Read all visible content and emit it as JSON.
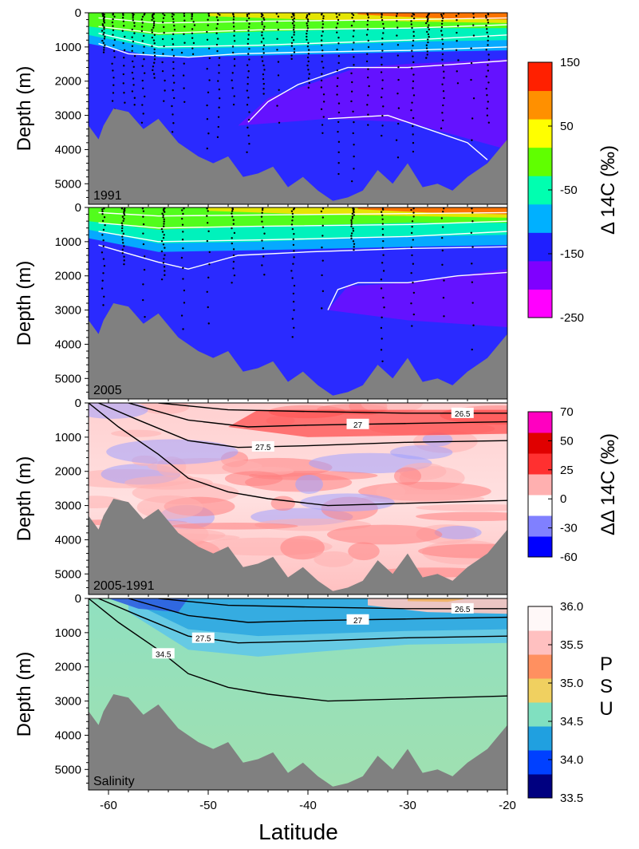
{
  "chart_data": {
    "type": "heatmap",
    "xlabel": "Latitude",
    "xlim": [
      -62,
      -20
    ],
    "xticks": [
      -60,
      -50,
      -40,
      -30,
      -20
    ],
    "ylim": [
      5600,
      0
    ],
    "yticks": [
      0,
      1000,
      2000,
      3000,
      4000,
      5000
    ],
    "bathymetry": {
      "lat": [
        -62,
        -61,
        -60.5,
        -59.5,
        -58,
        -56.5,
        -55,
        -53,
        -51,
        -49.5,
        -48,
        -46.5,
        -45,
        -43.5,
        -42,
        -40.5,
        -39,
        -37.5,
        -36,
        -34.5,
        -33,
        -31.5,
        -30,
        -28.5,
        -27,
        -25.5,
        -24,
        -22,
        -20
      ],
      "depth": [
        3300,
        3700,
        3300,
        2800,
        2900,
        3400,
        3100,
        3800,
        4200,
        4400,
        4200,
        4800,
        4700,
        4500,
        5100,
        4800,
        5200,
        5500,
        5400,
        5200,
        4600,
        5000,
        4400,
        5100,
        5000,
        5200,
        4800,
        4400,
        3700
      ]
    },
    "panels": [
      {
        "label": "1991",
        "ylabel": "Depth (m)",
        "field": "Δ14C",
        "has_stations": true,
        "contours": [
          {
            "color": "white",
            "depth": [
              [
                -61,
                150
              ],
              [
                -55,
                300
              ],
              [
                -45,
                250
              ],
              [
                -30,
                200
              ],
              [
                -20,
                150
              ]
            ]
          },
          {
            "color": "white",
            "depth": [
              [
                -61,
                400
              ],
              [
                -55,
                600
              ],
              [
                -45,
                500
              ],
              [
                -30,
                450
              ],
              [
                -20,
                350
              ]
            ]
          },
          {
            "color": "white",
            "depth": [
              [
                -61,
                600
              ],
              [
                -55,
                1000
              ],
              [
                -45,
                950
              ],
              [
                -30,
                800
              ],
              [
                -20,
                650
              ]
            ]
          },
          {
            "color": "white",
            "depth": [
              [
                -61,
                900
              ],
              [
                -58,
                1200
              ],
              [
                -52,
                1300
              ],
              [
                -47,
                1200
              ],
              [
                -40,
                1150
              ],
              [
                -30,
                1100
              ],
              [
                -20,
                1000
              ]
            ]
          },
          {
            "color": "white",
            "depth": [
              [
                -46,
                3200
              ],
              [
                -44,
                2600
              ],
              [
                -41,
                2100
              ],
              [
                -36,
                1600
              ],
              [
                -30,
                1600
              ],
              [
                -25,
                1500
              ],
              [
                -20,
                1400
              ]
            ]
          },
          {
            "color": "white",
            "depth": [
              [
                -38,
                3100
              ],
              [
                -32,
                3000
              ],
              [
                -28,
                3400
              ],
              [
                -24,
                3800
              ],
              [
                -22,
                4300
              ]
            ]
          }
        ]
      },
      {
        "label": "2005",
        "ylabel": "Depth (m)",
        "field": "Δ14C",
        "has_stations": true,
        "contours": [
          {
            "color": "white",
            "depth": [
              [
                -61,
                150
              ],
              [
                -55,
                250
              ],
              [
                -45,
                220
              ],
              [
                -30,
                180
              ],
              [
                -20,
                150
              ]
            ]
          },
          {
            "color": "white",
            "depth": [
              [
                -61,
                450
              ],
              [
                -55,
                600
              ],
              [
                -45,
                550
              ],
              [
                -30,
                500
              ],
              [
                -20,
                400
              ]
            ]
          },
          {
            "color": "white",
            "depth": [
              [
                -61,
                700
              ],
              [
                -55,
                1000
              ],
              [
                -45,
                950
              ],
              [
                -30,
                850
              ],
              [
                -20,
                700
              ]
            ]
          },
          {
            "color": "white",
            "depth": [
              [
                -61,
                1100
              ],
              [
                -55,
                1600
              ],
              [
                -52,
                1800
              ],
              [
                -47,
                1400
              ],
              [
                -40,
                1300
              ],
              [
                -30,
                1200
              ],
              [
                -20,
                1150
              ]
            ]
          },
          {
            "color": "white",
            "depth": [
              [
                -38,
                3000
              ],
              [
                -37,
                2400
              ],
              [
                -35,
                2200
              ],
              [
                -30,
                2200
              ],
              [
                -25,
                2000
              ],
              [
                -20,
                1900
              ]
            ]
          }
        ]
      },
      {
        "label": "2005-1991",
        "ylabel": "Depth (m)",
        "field": "ΔΔ14C",
        "has_stations": false,
        "contours": [
          {
            "color": "black",
            "label": "26.5",
            "label_lat": -24.5,
            "depth": [
              [
                -55,
                0
              ],
              [
                -48,
                200
              ],
              [
                -40,
                250
              ],
              [
                -30,
                300
              ],
              [
                -20,
                300
              ]
            ]
          },
          {
            "color": "black",
            "label": "27",
            "label_lat": -35,
            "depth": [
              [
                -58,
                0
              ],
              [
                -52,
                500
              ],
              [
                -46,
                700
              ],
              [
                -40,
                650
              ],
              [
                -30,
                600
              ],
              [
                -20,
                550
              ]
            ]
          },
          {
            "color": "black",
            "label": "27.5",
            "label_lat": -44.5,
            "depth": [
              [
                -61,
                0
              ],
              [
                -57,
                500
              ],
              [
                -52,
                1100
              ],
              [
                -47,
                1300
              ],
              [
                -40,
                1250
              ],
              [
                -30,
                1150
              ],
              [
                -20,
                1100
              ]
            ]
          },
          {
            "color": "black",
            "depth": [
              [
                -62,
                0
              ],
              [
                -59,
                700
              ],
              [
                -55,
                1500
              ],
              [
                -52,
                2200
              ],
              [
                -48,
                2600
              ],
              [
                -44,
                2800
              ],
              [
                -38,
                3000
              ],
              [
                -32,
                2950
              ],
              [
                -26,
                2900
              ],
              [
                -20,
                2850
              ]
            ]
          }
        ]
      },
      {
        "label": "Salinity",
        "ylabel": "Depth (m)",
        "field": "PSU",
        "has_stations": false,
        "contours": [
          {
            "color": "black",
            "label": "26.5",
            "label_lat": -24.5,
            "depth": [
              [
                -55,
                0
              ],
              [
                -48,
                200
              ],
              [
                -40,
                250
              ],
              [
                -30,
                300
              ],
              [
                -20,
                300
              ]
            ]
          },
          {
            "color": "black",
            "label": "27",
            "label_lat": -35,
            "depth": [
              [
                -58,
                0
              ],
              [
                -52,
                500
              ],
              [
                -46,
                700
              ],
              [
                -40,
                650
              ],
              [
                -30,
                600
              ],
              [
                -20,
                550
              ]
            ]
          },
          {
            "color": "black",
            "label": "27.5",
            "label_lat": -50.5,
            "depth": [
              [
                -61,
                0
              ],
              [
                -57,
                500
              ],
              [
                -52,
                1100
              ],
              [
                -47,
                1300
              ],
              [
                -40,
                1250
              ],
              [
                -30,
                1150
              ],
              [
                -20,
                1100
              ]
            ]
          },
          {
            "color": "black",
            "label": "34.5",
            "label_lat": -54.5,
            "depth": [
              [
                -62,
                0
              ],
              [
                -59,
                700
              ],
              [
                -55,
                1500
              ],
              [
                -52,
                2200
              ],
              [
                -48,
                2600
              ],
              [
                -44,
                2800
              ],
              [
                -38,
                3000
              ],
              [
                -32,
                2950
              ],
              [
                -26,
                2900
              ],
              [
                -20,
                2850
              ]
            ]
          }
        ]
      }
    ],
    "colorbars": [
      {
        "label": "Δ 14C (‰)",
        "ticks": [
          "150",
          "50",
          "-50",
          "-150",
          "-250"
        ],
        "range": [
          -250,
          150
        ],
        "colors": [
          "#ff00ff",
          "#7f00ff",
          "#1f1fff",
          "#00b0ff",
          "#00ffb0",
          "#60ff00",
          "#ffff00",
          "#ff9000",
          "#ff2000"
        ]
      },
      {
        "label": "ΔΔ 14C (‰)",
        "ticks": [
          "70",
          "50",
          "25",
          "0",
          "-30",
          "-60"
        ],
        "range": [
          -60,
          70
        ],
        "colors": [
          "#0000ff",
          "#8080ff",
          "#ffffff",
          "#ffb0b0",
          "#ff3030",
          "#e00000",
          "#ff00c0"
        ]
      },
      {
        "label": "PSU",
        "ticks": [
          "36.0",
          "35.5",
          "35.0",
          "34.5",
          "34.0",
          "33.5"
        ],
        "range": [
          33.5,
          36.0
        ],
        "colors": [
          "#000080",
          "#0040ff",
          "#20a0e0",
          "#80e0c0",
          "#f0d060",
          "#ff9060",
          "#ffc0c0",
          "#fff8f8"
        ]
      }
    ]
  }
}
